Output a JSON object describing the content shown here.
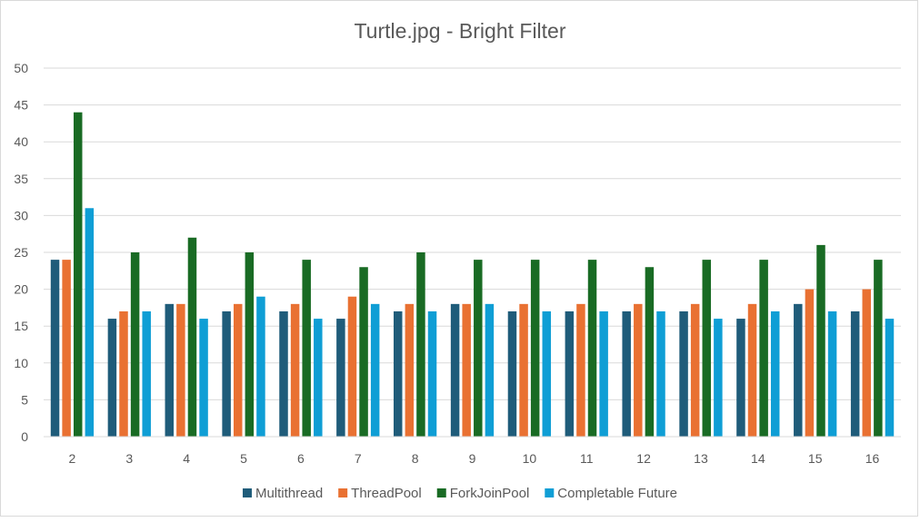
{
  "chart_data": {
    "type": "bar",
    "title": "Turtle.jpg - Bright Filter",
    "xlabel": "",
    "ylabel": "",
    "ylim": [
      0,
      50
    ],
    "yticks": [
      0,
      5,
      10,
      15,
      20,
      25,
      30,
      35,
      40,
      45,
      50
    ],
    "grid": true,
    "legend_position": "bottom",
    "categories": [
      "2",
      "3",
      "4",
      "5",
      "6",
      "7",
      "8",
      "9",
      "10",
      "11",
      "12",
      "13",
      "14",
      "15",
      "16"
    ],
    "series": [
      {
        "name": "Multithread",
        "color": "#1f5c7a",
        "values": [
          24,
          16,
          18,
          17,
          17,
          16,
          17,
          18,
          17,
          17,
          17,
          17,
          16,
          18,
          17
        ]
      },
      {
        "name": "ThreadPool",
        "color": "#e97132",
        "values": [
          24,
          17,
          18,
          18,
          18,
          19,
          18,
          18,
          18,
          18,
          18,
          18,
          18,
          20,
          20
        ]
      },
      {
        "name": "ForkJoinPool",
        "color": "#196b24",
        "values": [
          44,
          25,
          27,
          25,
          24,
          23,
          25,
          24,
          24,
          24,
          23,
          24,
          24,
          26,
          24
        ]
      },
      {
        "name": "Completable Future",
        "color": "#0f9ed5",
        "values": [
          31,
          17,
          16,
          19,
          16,
          18,
          17,
          18,
          17,
          17,
          17,
          16,
          17,
          17,
          16
        ]
      }
    ]
  }
}
